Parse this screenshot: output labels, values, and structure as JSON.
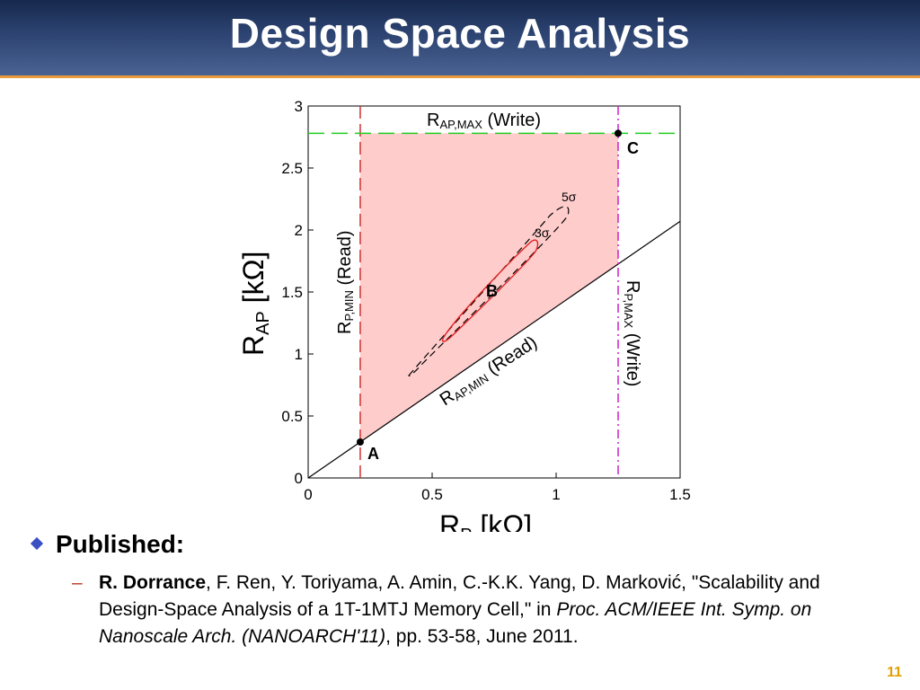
{
  "slide": {
    "title": "Design Space Analysis",
    "page_number": "11",
    "colors": {
      "title_bg": "#2d4472",
      "accent_rule": "#e89a3c",
      "bullet": "#3a4fc2",
      "page_num": "#e0a000"
    }
  },
  "figure": {
    "x_axis_label": "R",
    "x_axis_sub": "P",
    "x_axis_unit": " [kΩ]",
    "y_axis_label": "R",
    "y_axis_sub": "AP",
    "y_axis_unit": " [kΩ]",
    "x_ticks": [
      "0",
      "0.5",
      "1",
      "1.5"
    ],
    "y_ticks": [
      "0",
      "0.5",
      "1",
      "1.5",
      "2",
      "2.5",
      "3"
    ],
    "x_range": [
      0,
      1.5
    ],
    "y_range": [
      0,
      3
    ],
    "rp_min": 0.21,
    "rp_max": 1.25,
    "rap_max": 2.78,
    "label_rap_max_main": "R",
    "label_rap_max_sub": "AP,MAX",
    "label_rap_max_tail": " (Write)",
    "label_rp_min_main": "R",
    "label_rp_min_sub": "P,MIN",
    "label_rp_min_tail": " (Read)",
    "label_rp_max_main": "R",
    "label_rp_max_sub": "P,MAX",
    "label_rp_max_tail": " (Write)",
    "label_rap_min_main": "R",
    "label_rap_min_sub": "AP,MIN",
    "label_rap_min_tail": " (Read)",
    "sigma5_label": "5σ",
    "sigma3_label": "3σ",
    "point_a_label": "A",
    "point_b_label": "B",
    "point_c_label": "C",
    "point_a": [
      0.21,
      0.29
    ],
    "point_c": [
      1.25,
      2.78
    ],
    "point_b": [
      0.74,
      1.52
    ],
    "colors": {
      "region": "#ffcccc",
      "rp_min_line": "#d03030",
      "rp_max_line": "#cc22cc",
      "rap_max_line": "#22cc22",
      "sigma3": "#e02020",
      "sigma5": "#000000"
    }
  },
  "bullets": {
    "heading": "Published:",
    "ref_dash": "–",
    "ref_author_bold": "R. Dorrance",
    "ref_authors_rest": ", F. Ren, Y. Toriyama, A. Amin, C.-K.K. Yang, D. Marković, ",
    "ref_title": "\"Scalability and Design-Space Analysis of a 1T-1MTJ Memory Cell,\" in ",
    "ref_venue_italic": "Proc. ACM/IEEE Int. Symp. on Nanoscale Arch. (NANOARCH'11)",
    "ref_tail": ", pp. 53-58, June 2011."
  }
}
